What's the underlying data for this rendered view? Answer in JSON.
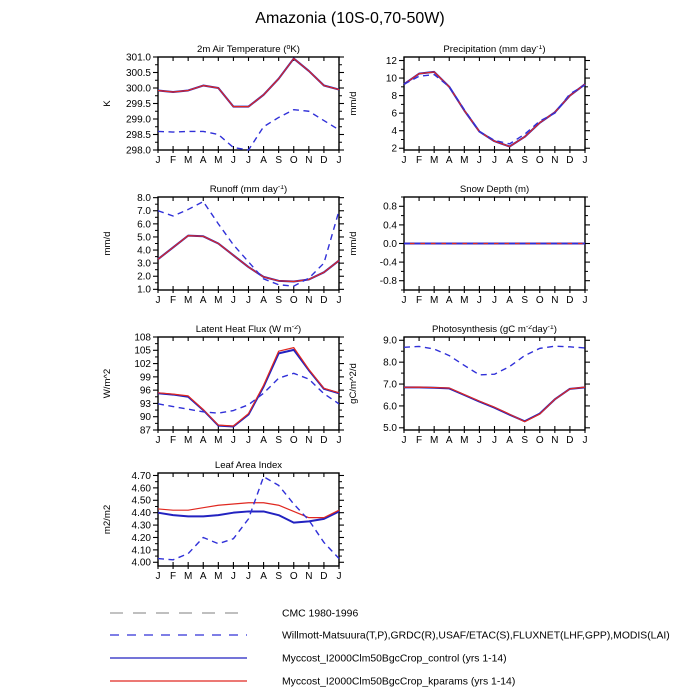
{
  "title": "Amazonia (10S-0,70-50W)",
  "months": [
    "J",
    "F",
    "M",
    "A",
    "M",
    "J",
    "J",
    "A",
    "S",
    "O",
    "N",
    "D",
    "J"
  ],
  "palette": {
    "control_blue": "#2222C0",
    "kparams_red": "#E02820",
    "obs_blue": "#3030D8",
    "cmc_gray": "#999999",
    "axis_black": "#000000"
  },
  "chart_data": [
    {
      "id": "air-temperature",
      "type": "line",
      "grid": {
        "row": 0,
        "col": 0
      },
      "title_parts": [
        {
          "t": "2m Air Temperature ("
        },
        {
          "t": "o",
          "sup": true
        },
        {
          "t": "K)"
        }
      ],
      "ylabel": "K",
      "ylim": [
        298.0,
        301.0
      ],
      "yticks": {
        "values": [
          298.0,
          298.5,
          299.0,
          299.5,
          300.0,
          300.5,
          301.0
        ],
        "labels": [
          "298.0",
          "298.5",
          "299.0",
          "299.5",
          "300.0",
          "300.5",
          "301.0"
        ]
      },
      "series": [
        {
          "role": "cmc",
          "values": null
        },
        {
          "role": "control",
          "values": [
            299.92,
            299.87,
            299.92,
            300.08,
            300.0,
            299.4,
            299.4,
            299.78,
            300.3,
            300.95,
            300.55,
            300.08,
            299.95
          ]
        },
        {
          "role": "kparams",
          "values": [
            299.92,
            299.87,
            299.92,
            300.08,
            300.0,
            299.4,
            299.4,
            299.78,
            300.3,
            300.95,
            300.55,
            300.08,
            299.95
          ]
        },
        {
          "role": "obs",
          "values": [
            298.6,
            298.58,
            298.6,
            298.6,
            298.5,
            298.08,
            298.0,
            298.75,
            299.05,
            299.3,
            299.25,
            298.95,
            298.65
          ]
        }
      ]
    },
    {
      "id": "precipitation",
      "type": "line",
      "grid": {
        "row": 0,
        "col": 1
      },
      "title_parts": [
        {
          "t": "Precipitation (mm day"
        },
        {
          "t": "-1",
          "sup": true
        },
        {
          "t": ")"
        }
      ],
      "ylabel": "mm/d",
      "ylim": [
        1.8,
        12.4
      ],
      "yticks": {
        "values": [
          2,
          4,
          6,
          8,
          10,
          12
        ],
        "labels": [
          "2",
          "4",
          "6",
          "8",
          "10",
          "12"
        ]
      },
      "series": [
        {
          "role": "cmc",
          "values": null
        },
        {
          "role": "control",
          "values": [
            9.3,
            10.5,
            10.7,
            9.0,
            6.3,
            3.9,
            2.8,
            2.2,
            3.3,
            4.9,
            6.1,
            8.0,
            9.3
          ]
        },
        {
          "role": "kparams",
          "values": [
            9.3,
            10.5,
            10.7,
            9.0,
            6.3,
            3.9,
            2.8,
            2.2,
            3.3,
            4.9,
            6.1,
            8.0,
            9.3
          ]
        },
        {
          "role": "obs",
          "values": [
            9.3,
            10.2,
            10.4,
            9.0,
            6.4,
            3.9,
            2.9,
            2.5,
            3.6,
            5.1,
            6.0,
            8.2,
            9.2
          ]
        }
      ]
    },
    {
      "id": "runoff",
      "type": "line",
      "grid": {
        "row": 1,
        "col": 0
      },
      "title_parts": [
        {
          "t": "Runoff (mm day"
        },
        {
          "t": "-1",
          "sup": true
        },
        {
          "t": ")"
        }
      ],
      "ylabel": "mm/d",
      "ylim": [
        0.95,
        8.05
      ],
      "yticks": {
        "values": [
          1,
          2,
          3,
          4,
          5,
          6,
          7,
          8
        ],
        "labels": [
          "1.0",
          "2.0",
          "3.0",
          "4.0",
          "5.0",
          "6.0",
          "7.0",
          "8.0"
        ]
      },
      "series": [
        {
          "role": "cmc",
          "values": null
        },
        {
          "role": "control",
          "values": [
            3.3,
            4.2,
            5.1,
            5.05,
            4.5,
            3.6,
            2.7,
            1.95,
            1.65,
            1.6,
            1.75,
            2.3,
            3.2
          ]
        },
        {
          "role": "kparams",
          "values": [
            3.3,
            4.2,
            5.1,
            5.05,
            4.5,
            3.6,
            2.7,
            1.95,
            1.65,
            1.6,
            1.75,
            2.3,
            3.2
          ]
        },
        {
          "role": "obs",
          "values": [
            7.0,
            6.6,
            7.1,
            7.7,
            6.0,
            4.4,
            3.1,
            1.8,
            1.35,
            1.25,
            1.85,
            3.0,
            7.0
          ]
        }
      ]
    },
    {
      "id": "snow-depth",
      "type": "line",
      "grid": {
        "row": 1,
        "col": 1
      },
      "title_parts": [
        {
          "t": "Snow Depth (m)"
        }
      ],
      "ylabel": "mm/d",
      "ylim": [
        -1.0,
        1.0
      ],
      "yticks": {
        "values": [
          -0.8,
          -0.4,
          0.0,
          0.4,
          0.8
        ],
        "labels": [
          "-0.8",
          "-0.4",
          "0.0",
          "0.4",
          "0.8"
        ]
      },
      "series": [
        {
          "role": "cmc",
          "values": [
            0,
            0,
            0,
            0,
            0,
            0,
            0,
            0,
            0,
            0,
            0,
            0,
            0
          ]
        },
        {
          "role": "control",
          "values": [
            0,
            0,
            0,
            0,
            0,
            0,
            0,
            0,
            0,
            0,
            0,
            0,
            0
          ]
        },
        {
          "role": "kparams",
          "values": [
            0,
            0,
            0,
            0,
            0,
            0,
            0,
            0,
            0,
            0,
            0,
            0,
            0
          ]
        },
        {
          "role": "obs",
          "values": [
            0,
            0,
            0,
            0,
            0,
            0,
            0,
            0,
            0,
            0,
            0,
            0,
            0
          ]
        }
      ]
    },
    {
      "id": "latent-heat-flux",
      "type": "line",
      "grid": {
        "row": 2,
        "col": 0
      },
      "title_parts": [
        {
          "t": "Latent Heat Flux (W m"
        },
        {
          "t": "-2",
          "sup": true
        },
        {
          "t": ")"
        }
      ],
      "ylabel": "W/m^2",
      "ylim": [
        87,
        108
      ],
      "yticks": {
        "values": [
          87,
          90,
          93,
          96,
          99,
          102,
          105,
          108
        ],
        "labels": [
          "87",
          "90",
          "93",
          "96",
          "99",
          "102",
          "105",
          "108"
        ]
      },
      "series": [
        {
          "role": "cmc",
          "values": null
        },
        {
          "role": "control",
          "values": [
            95.3,
            95.0,
            94.5,
            91.5,
            88.0,
            87.8,
            90.5,
            96.8,
            104.3,
            105.1,
            100.5,
            96.3,
            95.3
          ]
        },
        {
          "role": "kparams",
          "values": [
            95.4,
            95.1,
            94.7,
            91.6,
            88.1,
            87.9,
            90.7,
            97.1,
            104.8,
            105.6,
            100.7,
            96.4,
            95.4
          ]
        },
        {
          "role": "obs",
          "values": [
            92.9,
            92.3,
            91.7,
            91.1,
            90.8,
            91.4,
            92.7,
            95.3,
            98.7,
            99.8,
            98.5,
            95.2,
            92.9
          ]
        }
      ]
    },
    {
      "id": "photosynthesis",
      "type": "line",
      "grid": {
        "row": 2,
        "col": 1
      },
      "title_parts": [
        {
          "t": "Photosynthesis (gC m"
        },
        {
          "t": "-2",
          "sup": true
        },
        {
          "t": "day"
        },
        {
          "t": "-1",
          "sup": true
        },
        {
          "t": ")"
        }
      ],
      "ylabel": "gC/m^2/d",
      "ylim": [
        4.9,
        9.15
      ],
      "yticks": {
        "values": [
          5.0,
          6.0,
          7.0,
          8.0,
          9.0
        ],
        "labels": [
          "5.0",
          "6.0",
          "7.0",
          "8.0",
          "9.0"
        ]
      },
      "series": [
        {
          "role": "cmc",
          "values": null
        },
        {
          "role": "control",
          "values": [
            6.85,
            6.85,
            6.83,
            6.8,
            6.5,
            6.2,
            5.92,
            5.6,
            5.3,
            5.65,
            6.3,
            6.78,
            6.85
          ]
        },
        {
          "role": "kparams",
          "values": [
            6.85,
            6.86,
            6.84,
            6.82,
            6.52,
            6.22,
            5.94,
            5.62,
            5.28,
            5.63,
            6.3,
            6.78,
            6.86
          ]
        },
        {
          "role": "obs",
          "values": [
            8.68,
            8.72,
            8.6,
            8.3,
            7.85,
            7.42,
            7.45,
            7.8,
            8.3,
            8.63,
            8.73,
            8.7,
            8.65
          ]
        }
      ]
    },
    {
      "id": "leaf-area-index",
      "type": "line",
      "grid": {
        "row": 3,
        "col": 0
      },
      "title_parts": [
        {
          "t": "Leaf Area Index"
        }
      ],
      "ylabel": "m2/m2",
      "ylim": [
        3.97,
        4.72
      ],
      "yticks": {
        "values": [
          4.0,
          4.1,
          4.2,
          4.3,
          4.4,
          4.5,
          4.6,
          4.7
        ],
        "labels": [
          "4.00",
          "4.10",
          "4.20",
          "4.30",
          "4.40",
          "4.50",
          "4.60",
          "4.70"
        ]
      },
      "series": [
        {
          "role": "cmc",
          "values": null
        },
        {
          "role": "control",
          "values": [
            4.4,
            4.38,
            4.37,
            4.37,
            4.38,
            4.4,
            4.41,
            4.41,
            4.38,
            4.32,
            4.33,
            4.35,
            4.41
          ]
        },
        {
          "role": "kparams",
          "values": [
            4.43,
            4.42,
            4.42,
            4.44,
            4.46,
            4.47,
            4.48,
            4.48,
            4.46,
            4.41,
            4.36,
            4.36,
            4.42
          ]
        },
        {
          "role": "obs",
          "values": [
            4.03,
            4.02,
            4.07,
            4.2,
            4.15,
            4.19,
            4.35,
            4.69,
            4.62,
            4.47,
            4.34,
            4.16,
            4.03
          ]
        }
      ]
    }
  ],
  "legend": {
    "entries": [
      {
        "role": "cmc",
        "style": "long-dash",
        "color": "#999999",
        "label": "CMC 1980-1996"
      },
      {
        "role": "obs",
        "style": "dash",
        "color": "#3030D8",
        "label": "Willmott-Matsuura(T,P),GRDC(R),USAF/ETAC(S),FLUXNET(LHF,GPP),MODIS(LAI)"
      },
      {
        "role": "control",
        "style": "solid",
        "color": "#2222C0",
        "label": "Myccost_I2000Clm50BgcCrop_control (yrs 1-14)"
      },
      {
        "role": "kparams",
        "style": "solid",
        "color": "#E02820",
        "label": "Myccost_I2000Clm50BgcCrop_kparams (yrs 1-14)"
      }
    ]
  }
}
